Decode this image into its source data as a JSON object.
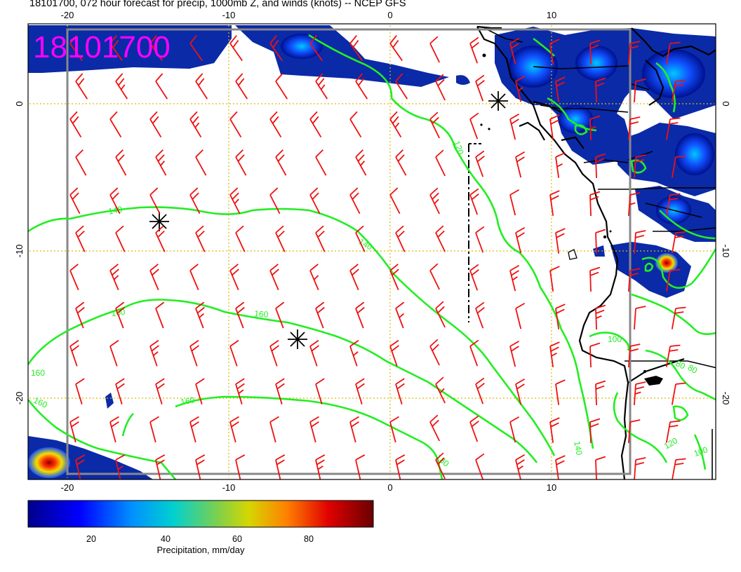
{
  "title": "18101700, 072 hour forecast for precip, 1000mb Z, and winds (knots) -- NCEP GFS",
  "stamp": "18101700",
  "stamp_color": "#ff00ff",
  "x_ticks_top": [
    "-20",
    "-10",
    "0",
    "10"
  ],
  "x_ticks_bottom": [
    "-20",
    "-10",
    "0",
    "10"
  ],
  "y_ticks_left": [
    "0",
    "-10",
    "-20"
  ],
  "y_ticks_right": [
    "0",
    "-10",
    "-20"
  ],
  "contour_labels": [
    "140",
    "140",
    "160",
    "160",
    "160",
    "160",
    "160",
    "180",
    "120",
    "140",
    "100",
    "80",
    "80",
    "100",
    "120"
  ],
  "colorbar": {
    "ticks": [
      "20",
      "40",
      "60",
      "80"
    ],
    "label": "Precipitation, mm/day"
  },
  "colors": {
    "contour": "#22ee22",
    "barb": "#ee1111",
    "coast": "#000000",
    "grid": "#ddbb00",
    "frame": "#888888"
  }
}
